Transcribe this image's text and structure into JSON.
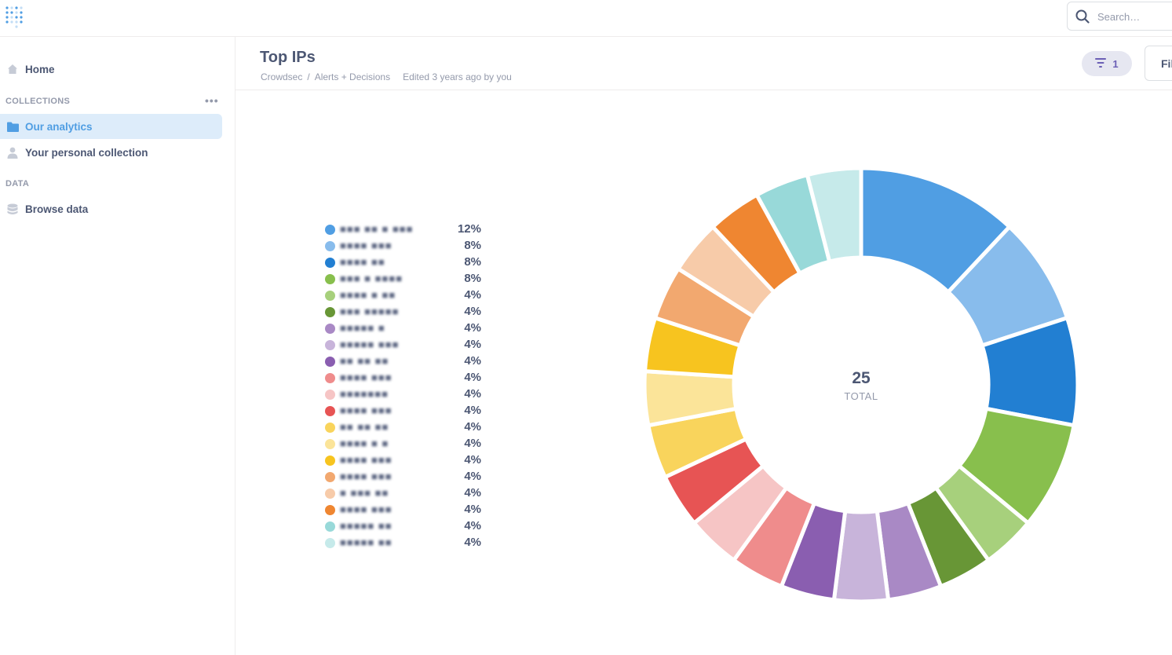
{
  "search": {
    "placeholder": "Search…"
  },
  "sidebar": {
    "home": "Home",
    "collections_label": "COLLECTIONS",
    "collections": [
      {
        "label": "Our analytics",
        "icon": "folder-icon"
      },
      {
        "label": "Your personal collection",
        "icon": "person-icon"
      }
    ],
    "data_label": "DATA",
    "browse": "Browse data"
  },
  "header": {
    "title": "Top IPs",
    "breadcrumb": [
      "Crowdsec",
      "Alerts + Decisions"
    ],
    "breadcrumb_sep": "/",
    "edited": "Edited 3 years ago by you",
    "filter_count": "1",
    "filter_button": "Fil"
  },
  "chart_data": {
    "type": "pie",
    "donut": true,
    "total_value": "25",
    "total_label": "TOTAL",
    "slices": [
      {
        "label": "■■■ ■■ ■  ■■■",
        "value": 3,
        "pct": "12%",
        "color": "#509ee3"
      },
      {
        "label": "■■■■ ■■■",
        "value": 2,
        "pct": "8%",
        "color": "#88bcec"
      },
      {
        "label": "■■■■ ■■",
        "value": 2,
        "pct": "8%",
        "color": "#227fd2"
      },
      {
        "label": "■■■ ■ ■■■■",
        "value": 2,
        "pct": "8%",
        "color": "#88bf4d"
      },
      {
        "label": "■■■■ ■ ■■",
        "value": 1,
        "pct": "4%",
        "color": "#a7d07c"
      },
      {
        "label": "■■■ ■■■■■",
        "value": 1,
        "pct": "4%",
        "color": "#689636"
      },
      {
        "label": "■■■■■ ■",
        "value": 1,
        "pct": "4%",
        "color": "#a989c5"
      },
      {
        "label": "■■■■■ ■■■",
        "value": 1,
        "pct": "4%",
        "color": "#c8b4da"
      },
      {
        "label": "■■ ■■ ■■",
        "value": 1,
        "pct": "4%",
        "color": "#8a5eb0"
      },
      {
        "label": "■■■■ ■■■",
        "value": 1,
        "pct": "4%",
        "color": "#ef8c8c"
      },
      {
        "label": "■■■■■■■",
        "value": 1,
        "pct": "4%",
        "color": "#f6c5c5"
      },
      {
        "label": "■■■■ ■■■",
        "value": 1,
        "pct": "4%",
        "color": "#e75454"
      },
      {
        "label": "■■ ■■ ■■",
        "value": 1,
        "pct": "4%",
        "color": "#f9d45c"
      },
      {
        "label": "■■■■ ■ ■",
        "value": 1,
        "pct": "4%",
        "color": "#fbe499"
      },
      {
        "label": "■■■■ ■■■",
        "value": 1,
        "pct": "4%",
        "color": "#f7c41f"
      },
      {
        "label": "■■■■ ■■■",
        "value": 1,
        "pct": "4%",
        "color": "#f2a86f"
      },
      {
        "label": "■ ■■■ ■■",
        "value": 1,
        "pct": "4%",
        "color": "#f7cba9"
      },
      {
        "label": "■■■■ ■■■",
        "value": 1,
        "pct": "4%",
        "color": "#ef8631"
      },
      {
        "label": "■■■■■ ■■",
        "value": 1,
        "pct": "4%",
        "color": "#98d9d9"
      },
      {
        "label": "■■■■■ ■■",
        "value": 1,
        "pct": "4%",
        "color": "#c6eaea"
      }
    ]
  }
}
